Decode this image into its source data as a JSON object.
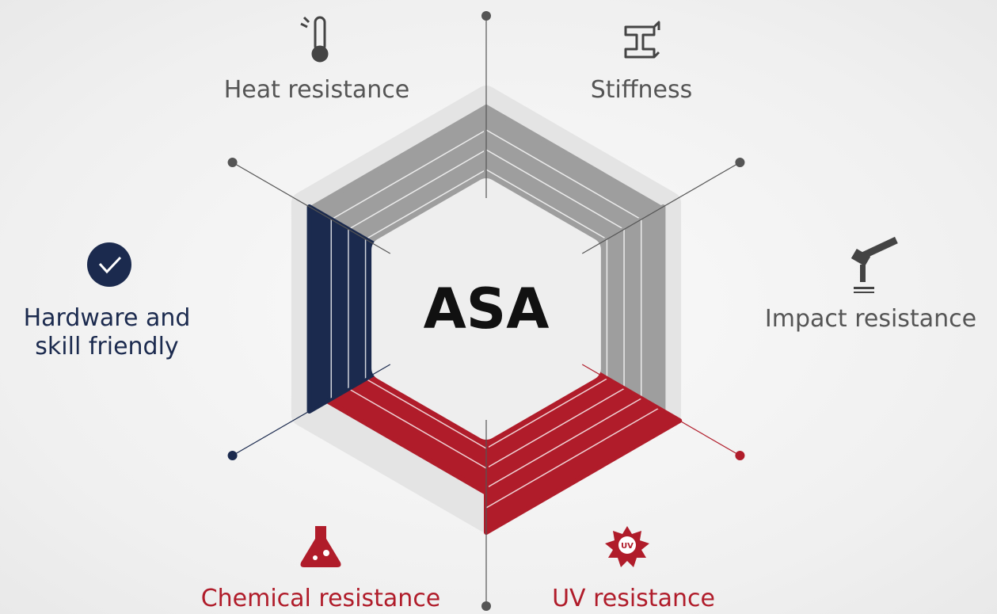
{
  "center": "ASA",
  "features": [
    {
      "label": "Heat resistance"
    },
    {
      "label": "Stiffness"
    },
    {
      "label": "Impact resistance"
    },
    {
      "label": "UV resistance"
    },
    {
      "label": "Chemical resistance"
    },
    {
      "label": "Hardware and skill friendly"
    }
  ]
}
